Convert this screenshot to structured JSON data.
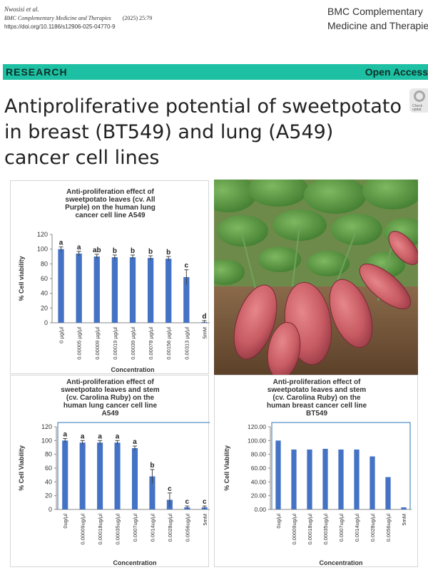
{
  "header": {
    "authors": "Nwosisi et al.",
    "journal": "BMC Complementary Medicine and Therapies",
    "year_volume": "(2025) 25:79",
    "doi": "https://doi.org/10.1186/s12906-025-04770-9",
    "journal_logo_line1": "BMC Complementary",
    "journal_logo_line2": "Medicine and Therapies"
  },
  "band": {
    "left": "RESEARCH",
    "right": "Open Access"
  },
  "title": "Antiproliferative potential of sweetpotato in breast (BT549) and lung (A549) cancer cell lines",
  "badge": {
    "line1": "Check",
    "line2": "updat"
  },
  "colors": {
    "bar": "#4472c4",
    "band": "#1ec0a3",
    "frame": "#2e75b6"
  },
  "chart_data": [
    {
      "type": "bar",
      "title": [
        "Anti-proliferation effect of",
        "sweetpotato  leaves (cv. All",
        "Purple) on the human lung",
        "cancer cell line A549"
      ],
      "ylabel": "% Cell viability",
      "xlabel": "Concentration",
      "ylim": [
        0,
        120
      ],
      "yticks": [
        "0",
        "20",
        "40",
        "60",
        "80",
        "100",
        "120"
      ],
      "categories": [
        "0 µg/µl",
        "0.00005 µg/µl",
        "0.00009 µg/µl",
        "0.00019 µg/µl",
        "0.00039 µg/µl",
        "0.00078 µg/µl",
        "0.00156 µg/µl",
        "0.00313 µg/µl",
        "5mM"
      ],
      "values": [
        100,
        94,
        90,
        89,
        89,
        88,
        87,
        62,
        1
      ],
      "letters": [
        "a",
        "a",
        "ab",
        "b",
        "b",
        "b",
        "b",
        "c",
        "d"
      ],
      "grid": false
    },
    {
      "type": "bar",
      "title": [
        "Anti-proliferation effect of",
        "sweetpotato leaves and stem",
        "(cv. Carolina Ruby) on the",
        "human lung cancer cell line",
        "A549"
      ],
      "ylabel": "% Cell Viability",
      "xlabel": "Concentration",
      "ylim": [
        0,
        120
      ],
      "yticks": [
        "0",
        "20",
        "40",
        "60",
        "80",
        "100",
        "120"
      ],
      "categories": [
        "0ug/µl",
        "0.00009ug/µl",
        "0.00018ug/µl",
        "0.00035ug/µl",
        "0.0007ug/µl",
        "0.0014ug/µl",
        "0.0028ug/µl",
        "0.0056ug/µl",
        "5mM"
      ],
      "values": [
        100,
        97,
        97,
        97,
        89,
        48,
        14,
        3,
        3
      ],
      "letters": [
        "a",
        "a",
        "a",
        "a",
        "a",
        "b",
        "c",
        "c",
        "c"
      ],
      "grid": false
    },
    {
      "type": "bar",
      "title": [
        "Anti-proliferation effect of",
        "sweetpotato leaves and stem",
        "(cv. Carolina Ruby) on the",
        "human breast cancer cell line",
        "BT549"
      ],
      "ylabel": "% Cell Viability",
      "xlabel": "Concentration",
      "ylim": [
        0,
        120
      ],
      "yticks": [
        "0.00",
        "20.00",
        "40.00",
        "60.00",
        "80.00",
        "100.00",
        "120.00"
      ],
      "categories": [
        "0ug/µl",
        "0.00009ug/µl",
        "0.00018ug/µl",
        "0.00035ug/µl",
        "0.0007ug/µl",
        "0.0014ug/µl",
        "0.0028ug/µl",
        "0.0056ug/µl",
        "5mM"
      ],
      "values": [
        100,
        87,
        87,
        88,
        87,
        87,
        77,
        47,
        3
      ],
      "letters": [],
      "grid": false
    }
  ]
}
